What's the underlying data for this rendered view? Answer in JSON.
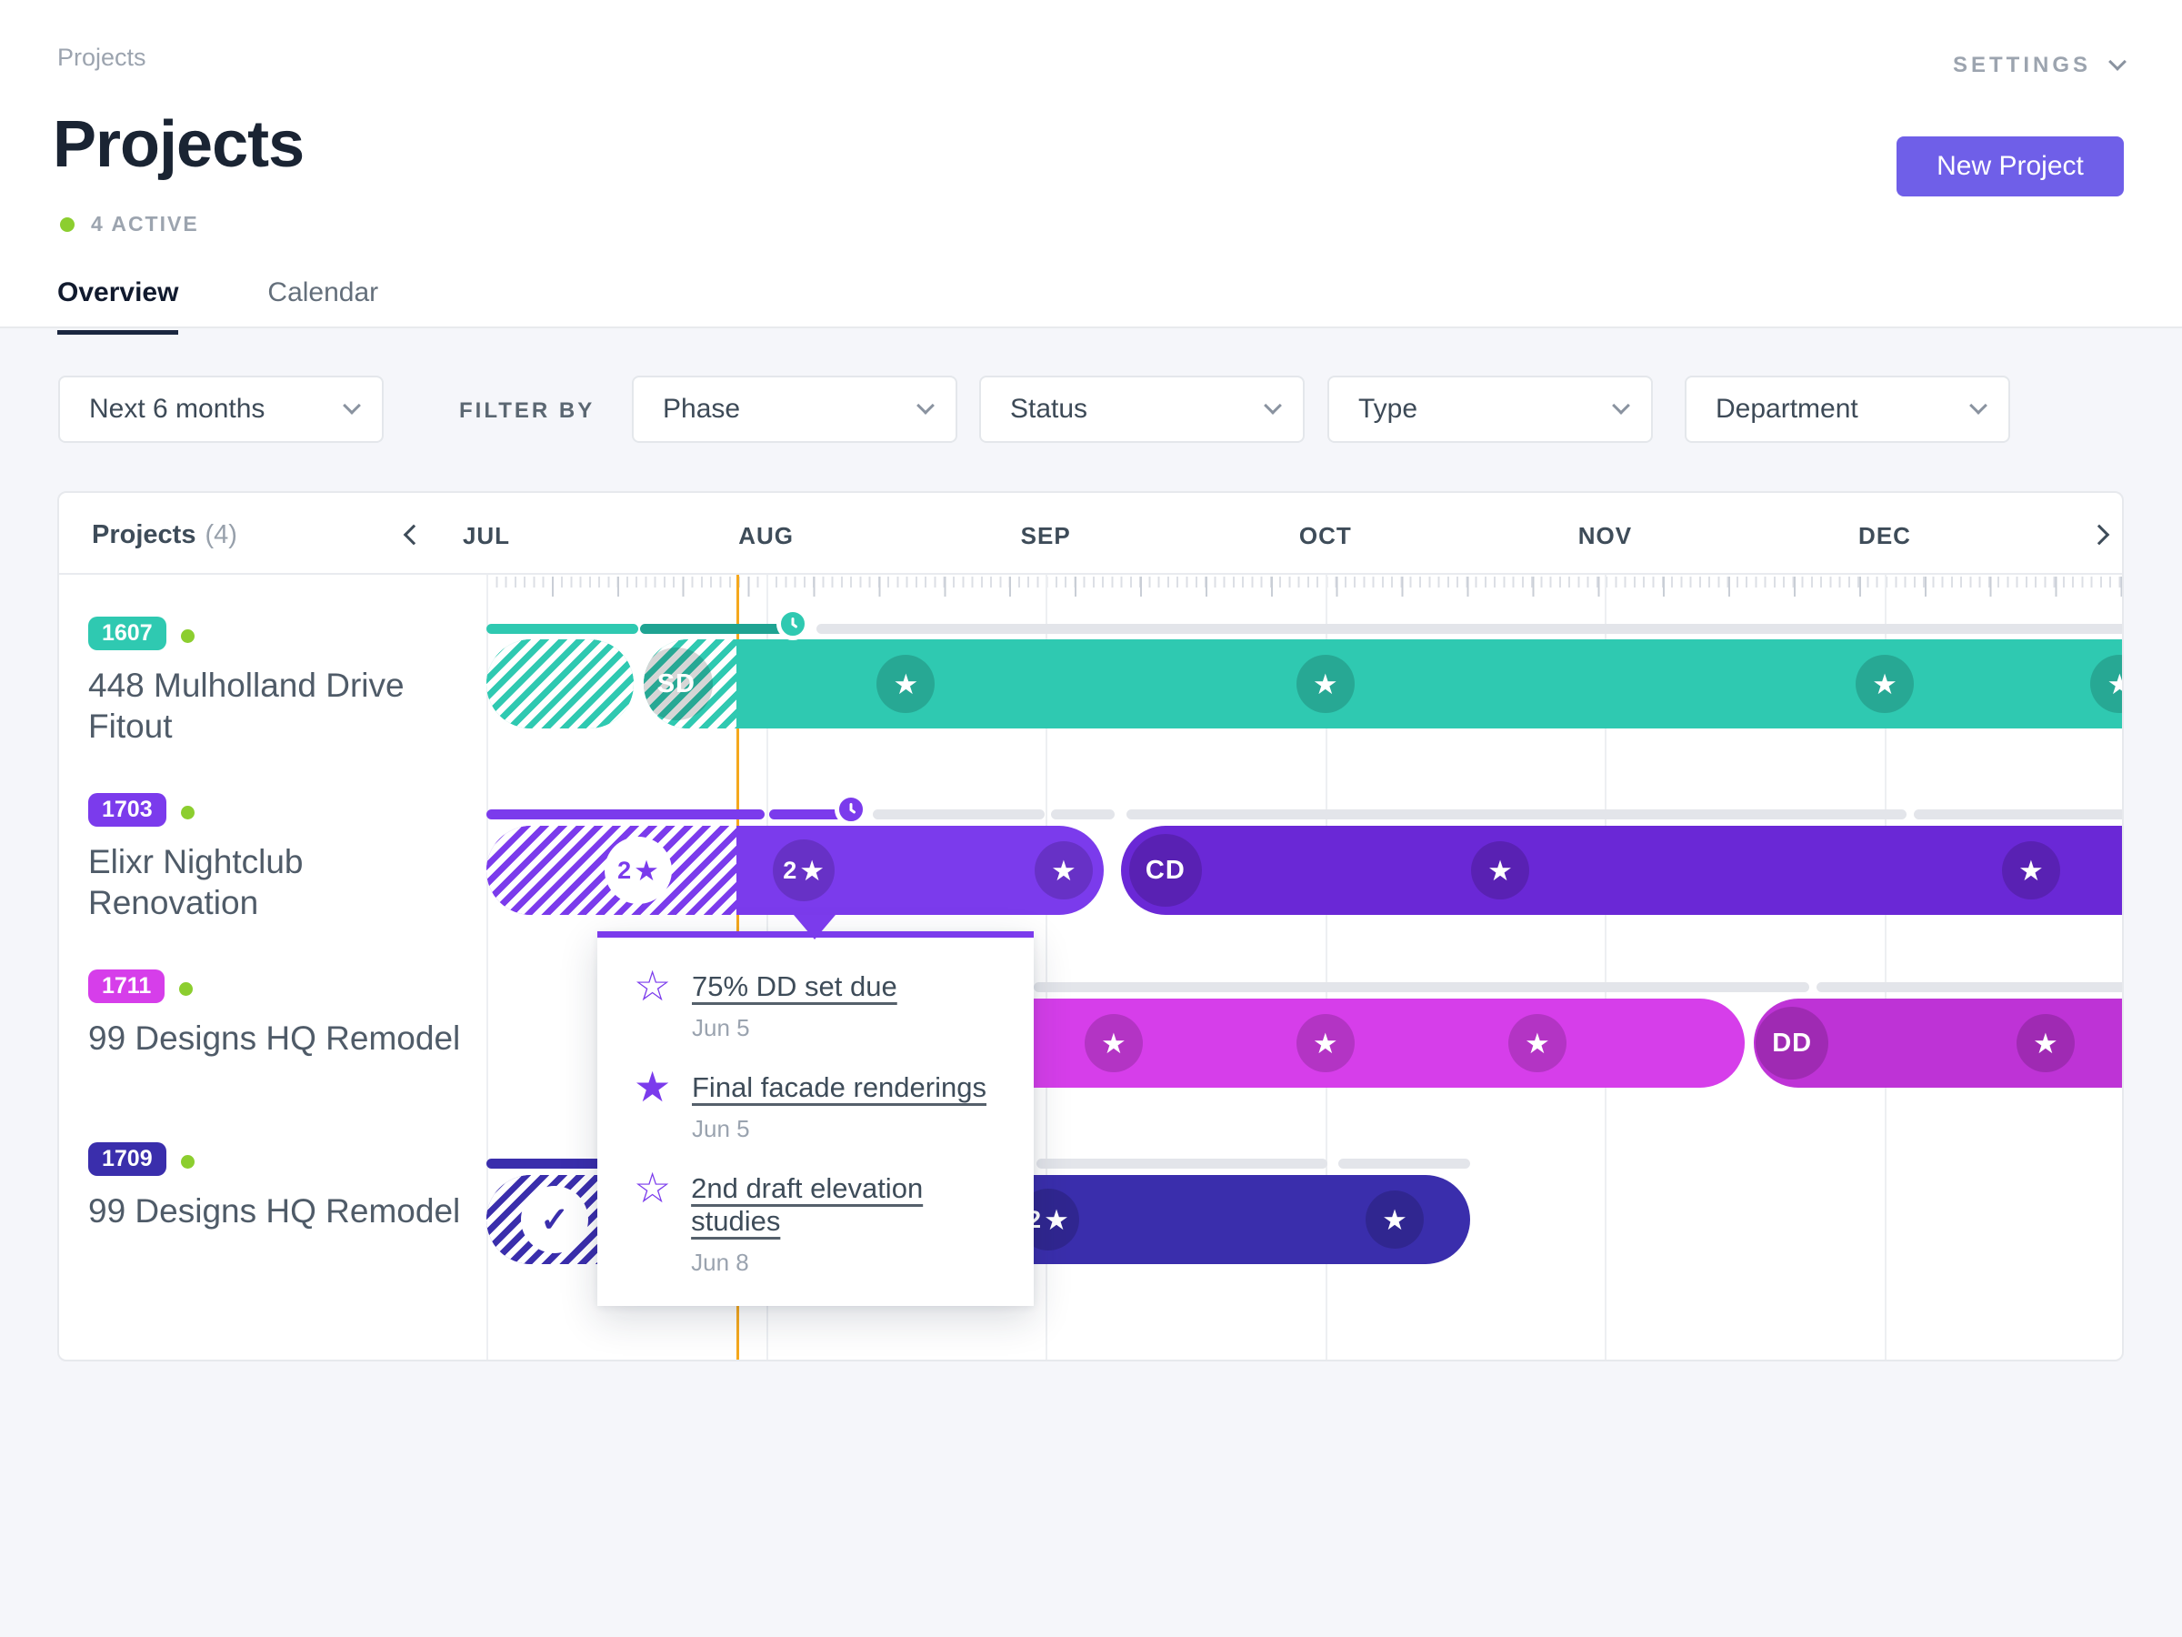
{
  "header": {
    "breadcrumb": "Projects",
    "settings_label": "SETTINGS",
    "title": "Projects",
    "active_count": "4 ACTIVE",
    "new_project_label": "New Project",
    "tabs": [
      {
        "label": "Overview",
        "active": true
      },
      {
        "label": "Calendar",
        "active": false
      }
    ]
  },
  "filters": {
    "range": "Next 6 months",
    "filter_by_label": "FILTER BY",
    "dropdowns": [
      "Phase",
      "Status",
      "Type",
      "Department"
    ]
  },
  "gantt": {
    "list_title": "Projects",
    "list_count": "(4)",
    "months": [
      "JUL",
      "AUG",
      "SEP",
      "OCT",
      "NOV",
      "DEC"
    ],
    "today_u": 0.893,
    "today_color": "#F5A81D",
    "track_color": "#E3E5EA",
    "active_dot_color": "#8CCE2F",
    "projects": [
      {
        "id": "1607",
        "color": "#2FC9B1",
        "name": "448 Mulholland Drive Fitout",
        "progress": [
          {
            "from": 0,
            "to": 0.543,
            "color": "#2FC9B1"
          },
          {
            "from": 0.551,
            "to": 1.112,
            "color": "#1FA392"
          }
        ],
        "clock": {
          "u": 1.112,
          "color": "#2FC9B1"
        },
        "track": [
          {
            "from": 1.18,
            "to": 5.95
          }
        ],
        "bars": [
          {
            "from": 0,
            "to": 0.527,
            "color": "#2FC9B1",
            "hatch_to": 0.527,
            "round": "both",
            "markers": []
          },
          {
            "from": 0.562,
            "to": 5.95,
            "color": "#2FC9B1",
            "hatch_to": 0.894,
            "round": "left",
            "markers": [
              {
                "u": 0.679,
                "type": "phase",
                "label": "SD"
              },
              {
                "u": 1.5,
                "type": "star"
              },
              {
                "u": 3.0,
                "type": "star"
              },
              {
                "u": 5.0,
                "type": "star"
              },
              {
                "u": 5.84,
                "type": "star"
              }
            ]
          }
        ]
      },
      {
        "id": "1703",
        "color": "#7B3BEC",
        "name": "Elixr Nightclub Renovation",
        "progress": [
          {
            "from": 0,
            "to": 0.995,
            "color": "#7B3BEC"
          },
          {
            "from": 1.011,
            "to": 1.274,
            "color": "#7B3BEC"
          }
        ],
        "clock": {
          "u": 1.32,
          "color": "#7B3BEC"
        },
        "track": [
          {
            "from": 1.382,
            "to": 1.996
          },
          {
            "from": 2.019,
            "to": 2.246
          },
          {
            "from": 2.289,
            "to": 5.078
          },
          {
            "from": 5.104,
            "to": 5.95
          }
        ],
        "bars": [
          {
            "from": 0,
            "to": 2.207,
            "color": "#7B3BEC",
            "hatch_to": 0.894,
            "round": "both",
            "markers": [
              {
                "u": 0.543,
                "type": "star2-light",
                "label": "2"
              },
              {
                "u": 1.135,
                "type": "star2",
                "label": "2"
              },
              {
                "u": 2.064,
                "type": "star"
              }
            ]
          },
          {
            "from": 2.269,
            "to": 5.95,
            "color": "#6A28D6",
            "round": "left",
            "markers": [
              {
                "u": 2.428,
                "type": "phase",
                "label": "CD"
              },
              {
                "u": 3.625,
                "type": "star"
              },
              {
                "u": 5.523,
                "type": "star"
              }
            ]
          }
        ]
      },
      {
        "id": "1711",
        "color": "#D63EEA",
        "name": "99 Designs HQ Remodel",
        "progress": [],
        "track": [
          {
            "from": 1.957,
            "to": 4.73
          },
          {
            "from": 4.756,
            "to": 5.95
          }
        ],
        "bars": [
          {
            "from": 0.673,
            "to": 4.5,
            "color": "#D63EEA",
            "round": "both",
            "markers": [
              {
                "u": 2.243,
                "type": "star"
              },
              {
                "u": 3.0,
                "type": "star"
              },
              {
                "u": 3.758,
                "type": "star"
              }
            ]
          },
          {
            "from": 4.532,
            "to": 5.95,
            "color": "#BE33D6",
            "round": "left",
            "markers": [
              {
                "u": 4.669,
                "type": "phase",
                "label": "DD"
              },
              {
                "u": 5.575,
                "type": "star"
              }
            ]
          }
        ]
      },
      {
        "id": "1709",
        "color": "#3A2EAC",
        "name": "99 Designs HQ Remodel",
        "progress": [
          {
            "from": 0,
            "to": 0.413,
            "color": "#3A2EAC"
          }
        ],
        "track": [
          {
            "from": 1.967,
            "to": 3.007
          },
          {
            "from": 3.046,
            "to": 3.518
          }
        ],
        "bars": [
          {
            "from": 0,
            "to": 3.518,
            "color": "#3A2EAC",
            "hatch_to": 0.894,
            "round": "both",
            "markers": [
              {
                "u": 0.244,
                "type": "check-light"
              },
              {
                "u": 2.009,
                "type": "star2",
                "label": "2"
              },
              {
                "u": 3.248,
                "type": "star"
              }
            ]
          }
        ]
      }
    ],
    "popup": {
      "accent_color": "#7B3BEC",
      "items": [
        {
          "icon": "star-outline",
          "title": "75% DD set due",
          "date": "Jun 5"
        },
        {
          "icon": "star-filled",
          "title": "Final facade renderings",
          "date": "Jun 5"
        },
        {
          "icon": "star-outline",
          "title": "2nd draft elevation studies",
          "date": "Jun 8"
        }
      ]
    }
  }
}
